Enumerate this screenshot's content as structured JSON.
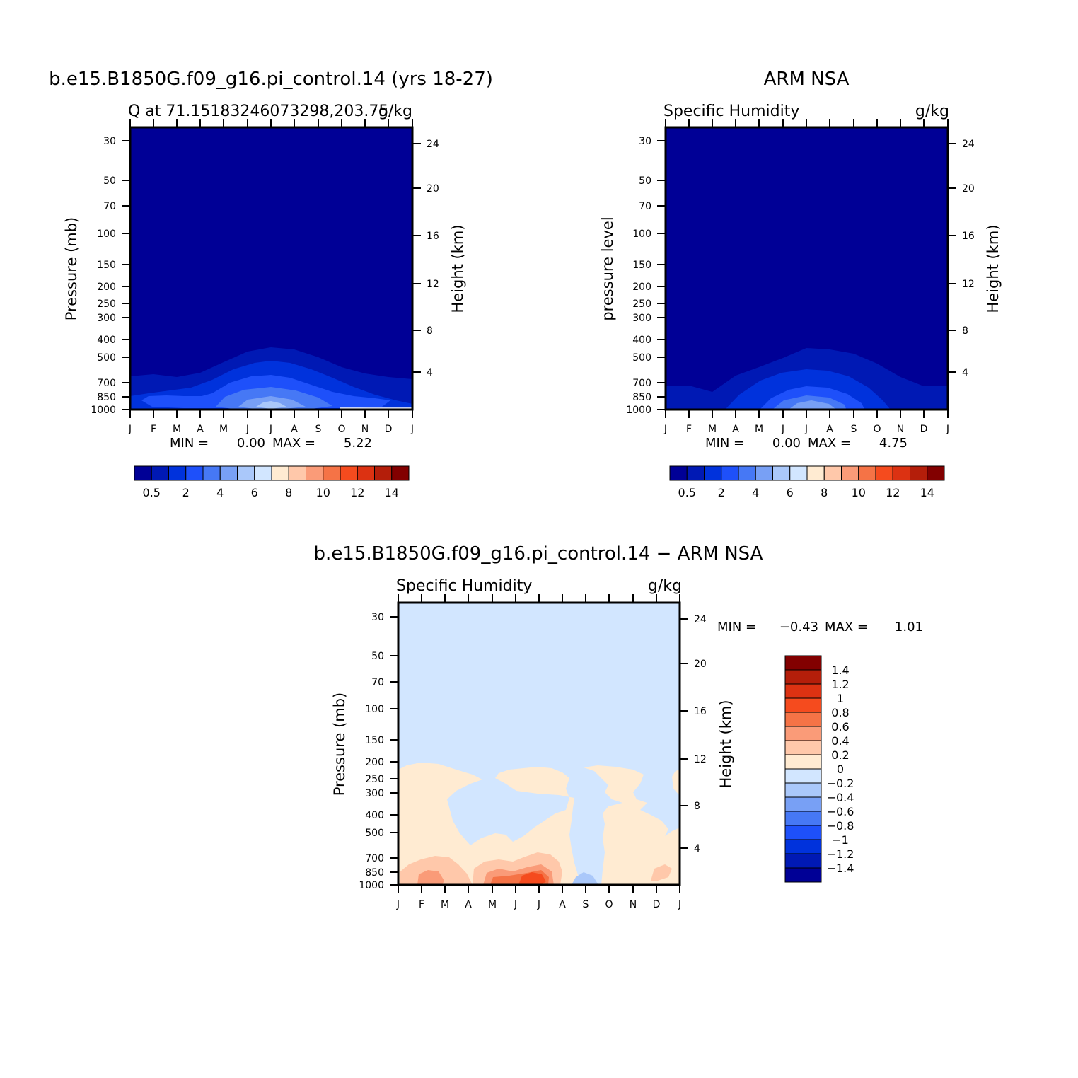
{
  "panels": [
    {
      "id": "model",
      "title": "b.e15.B1850G.f09_g16.pi_control.14 (yrs 18-27)",
      "left_string": "Q at 71.15183246073298,203.75",
      "right_string": "g/kg",
      "ylabel": "Pressure (mb)",
      "ylabel_right": "Height (km)",
      "stats": {
        "min_label": "MIN =",
        "min": "0.00",
        "max_label": "MAX =",
        "max": "5.22"
      }
    },
    {
      "id": "obs",
      "title": "ARM NSA",
      "left_string": "Specific Humidity",
      "right_string": "g/kg",
      "ylabel": "pressure level",
      "ylabel_right": "Height (km)",
      "stats": {
        "min_label": "MIN =",
        "min": "0.00",
        "max_label": "MAX =",
        "max": "4.75"
      }
    },
    {
      "id": "diff",
      "title": "b.e15.B1850G.f09_g16.pi_control.14 − ARM NSA",
      "left_string": "Specific Humidity",
      "right_string": "g/kg",
      "ylabel": "Pressure (mb)",
      "ylabel_right": "Height (km)",
      "stats": {
        "min_label": "MIN =",
        "min": "−0.43",
        "max_label": "MAX =",
        "max": "1.01"
      }
    }
  ],
  "chart_data": [
    {
      "type": "heatmap",
      "panel": "model",
      "x": [
        "J",
        "F",
        "M",
        "A",
        "M",
        "J",
        "J",
        "A",
        "S",
        "O",
        "N",
        "D",
        "J"
      ],
      "y_pressure_levels": [
        30,
        50,
        70,
        100,
        150,
        200,
        250,
        300,
        400,
        500,
        700,
        850,
        1000
      ],
      "y_height_km": [
        4,
        8,
        12,
        16,
        20,
        24
      ],
      "ylim": [
        1000,
        20
      ],
      "colorbar": {
        "orientation": "horizontal",
        "label_values": [
          "0.5",
          "2",
          "4",
          "6",
          "8",
          "10",
          "12",
          "14"
        ],
        "colors": [
          "#000096",
          "#0019b4",
          "#0032dc",
          "#1e50fa",
          "#4678f5",
          "#78a0f5",
          "#aac8fa",
          "#d2e6ff",
          "#ffebd2",
          "#ffc8aa",
          "#fa9b78",
          "#f57346",
          "#f54b1e",
          "#dc3212",
          "#b41e0a",
          "#820000"
        ]
      },
      "contour_levels_g_per_kg": [
        0.5,
        1,
        2,
        3,
        4,
        5
      ],
      "surface_q_by_month": [
        1.5,
        1.3,
        1.4,
        1.8,
        2.6,
        3.9,
        5.2,
        4.6,
        3.1,
        2.4,
        1.8,
        1.6,
        1.5
      ],
      "moist_layer_top_mb": [
        700,
        690,
        710,
        660,
        560,
        470,
        420,
        450,
        530,
        620,
        680,
        700,
        700
      ]
    },
    {
      "type": "heatmap",
      "panel": "obs",
      "x": [
        "J",
        "F",
        "M",
        "A",
        "M",
        "J",
        "J",
        "A",
        "S",
        "O",
        "N",
        "D",
        "J"
      ],
      "y_pressure_levels": [
        30,
        50,
        70,
        100,
        150,
        200,
        250,
        300,
        400,
        500,
        700,
        850,
        1000
      ],
      "y_height_km": [
        4,
        8,
        12,
        16,
        20,
        24
      ],
      "ylim": [
        1000,
        20
      ],
      "colorbar": {
        "orientation": "horizontal",
        "label_values": [
          "0.5",
          "2",
          "4",
          "6",
          "8",
          "10",
          "12",
          "14"
        ],
        "colors": [
          "#000096",
          "#0019b4",
          "#0032dc",
          "#1e50fa",
          "#4678f5",
          "#78a0f5",
          "#aac8fa",
          "#d2e6ff",
          "#ffebd2",
          "#ffc8aa",
          "#fa9b78",
          "#f57346",
          "#f54b1e",
          "#dc3212",
          "#b41e0a",
          "#820000"
        ]
      },
      "contour_levels_g_per_kg": [
        0.5,
        1,
        2,
        3,
        4
      ],
      "surface_q_by_month": [
        1.0,
        0.9,
        1.0,
        1.7,
        2.6,
        3.7,
        4.75,
        4.2,
        2.9,
        1.8,
        1.3,
        1.1,
        1.0
      ],
      "moist_layer_top_mb": [
        700,
        700,
        850,
        690,
        610,
        510,
        440,
        470,
        550,
        650,
        700,
        720,
        700
      ]
    },
    {
      "type": "heatmap",
      "panel": "diff",
      "x": [
        "J",
        "F",
        "M",
        "A",
        "M",
        "J",
        "J",
        "A",
        "S",
        "O",
        "N",
        "D",
        "J"
      ],
      "y_pressure_levels": [
        30,
        50,
        70,
        100,
        150,
        200,
        250,
        300,
        400,
        500,
        700,
        850,
        1000
      ],
      "y_height_km": [
        4,
        8,
        12,
        16,
        20,
        24
      ],
      "ylim": [
        1000,
        20
      ],
      "colorbar": {
        "orientation": "vertical",
        "label_values": [
          "1.4",
          "1.2",
          "1",
          "0.8",
          "0.6",
          "0.4",
          "0.2",
          "0",
          "−0.2",
          "−0.4",
          "−0.6",
          "−0.8",
          "−1",
          "−1.2",
          "−1.4"
        ],
        "colors": [
          "#820000",
          "#b41e0a",
          "#dc3212",
          "#f54b1e",
          "#f57346",
          "#fa9b78",
          "#ffc8aa",
          "#ffebd2",
          "#d2e6ff",
          "#aac8fa",
          "#78a0f5",
          "#4678f5",
          "#1e50fa",
          "#0032dc",
          "#0019b4",
          "#000096"
        ]
      },
      "contour_levels_g_per_kg": [
        -0.2,
        0,
        0.2,
        0.4,
        0.6,
        0.8
      ],
      "positive_layer_top_mb_by_month": [
        200,
        200,
        220,
        260,
        280,
        250,
        230,
        240,
        null,
        240,
        230,
        330,
        260
      ],
      "max_anomaly_location": {
        "month": "J",
        "pressure_mb": 900,
        "value": 1.01
      },
      "min_anomaly_location": {
        "month": "S",
        "pressure_mb": 950,
        "value": -0.43
      }
    }
  ]
}
